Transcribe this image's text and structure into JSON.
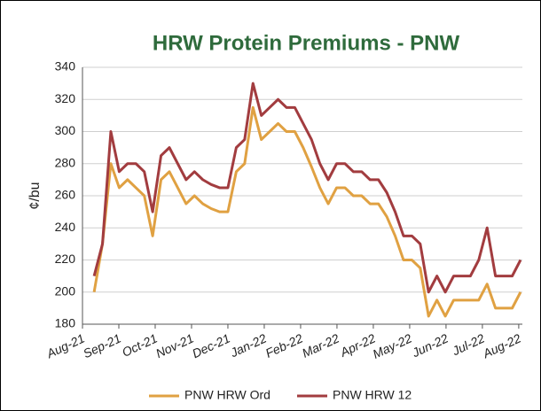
{
  "chart_data": {
    "type": "line",
    "title": "HRW Protein Premiums - PNW",
    "y_label": "¢/bu",
    "x": [
      0.32,
      0.55,
      0.78,
      1.01,
      1.24,
      1.47,
      1.7,
      1.93,
      2.16,
      2.39,
      2.62,
      2.85,
      3.08,
      3.31,
      3.54,
      3.77,
      4.0,
      4.23,
      4.46,
      4.69,
      4.92,
      5.15,
      5.38,
      5.61,
      5.84,
      6.07,
      6.3,
      6.53,
      6.76,
      6.99,
      7.22,
      7.45,
      7.68,
      7.91,
      8.14,
      8.37,
      8.6,
      8.83,
      9.06,
      9.29,
      9.52,
      9.75,
      9.98,
      10.21,
      10.44,
      10.67,
      10.9,
      11.13,
      11.36,
      11.59,
      11.82,
      12.05
    ],
    "xlim": [
      0,
      12.1
    ],
    "xticks": [
      {
        "value": 0,
        "label": "Aug-21"
      },
      {
        "value": 1,
        "label": "Sep-21"
      },
      {
        "value": 2,
        "label": "Oct-21"
      },
      {
        "value": 3,
        "label": "Nov-21"
      },
      {
        "value": 4,
        "label": "Dec-21"
      },
      {
        "value": 5,
        "label": "Jan-22"
      },
      {
        "value": 6,
        "label": "Feb-22"
      },
      {
        "value": 7,
        "label": "Mar-22"
      },
      {
        "value": 8,
        "label": "Apr-22"
      },
      {
        "value": 9,
        "label": "May-22"
      },
      {
        "value": 10,
        "label": "Jun-22"
      },
      {
        "value": 11,
        "label": "Jul-22"
      },
      {
        "value": 12,
        "label": "Aug-22"
      }
    ],
    "ylim": [
      180,
      340
    ],
    "yticks": [
      180,
      200,
      220,
      240,
      260,
      280,
      300,
      320,
      340
    ],
    "grid": true,
    "legend": "bottom",
    "series": [
      {
        "name": "PNW HRW Ord",
        "color": "#e0a142",
        "values": [
          200,
          230,
          280,
          265,
          270,
          265,
          260,
          235,
          270,
          275,
          265,
          255,
          260,
          255,
          252,
          250,
          250,
          275,
          280,
          315,
          295,
          300,
          305,
          300,
          300,
          290,
          278,
          265,
          255,
          265,
          265,
          260,
          260,
          255,
          255,
          247,
          235,
          220,
          220,
          215,
          185,
          195,
          185,
          195,
          195,
          195,
          195,
          205,
          190,
          190,
          190,
          200
        ]
      },
      {
        "name": "PNW HRW 12",
        "color": "#a23c3f",
        "values": [
          210,
          230,
          300,
          275,
          280,
          280,
          275,
          250,
          285,
          290,
          280,
          270,
          275,
          270,
          267,
          265,
          265,
          290,
          295,
          330,
          310,
          315,
          320,
          315,
          315,
          305,
          295,
          280,
          270,
          280,
          280,
          275,
          275,
          270,
          270,
          262,
          250,
          235,
          235,
          230,
          200,
          210,
          200,
          210,
          210,
          210,
          220,
          240,
          210,
          210,
          210,
          220
        ]
      }
    ]
  }
}
